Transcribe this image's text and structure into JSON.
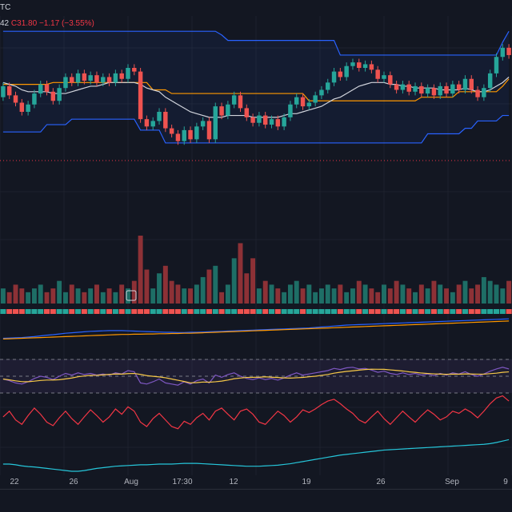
{
  "header": {
    "ticker_fragment": "TC",
    "legend_fragment": "42",
    "close_label": "C",
    "close_value": "31.80",
    "change": "−1.17 (−3.55%)"
  },
  "colors": {
    "background": "#131722",
    "up": "#26a69a",
    "down": "#ef5350",
    "channel": "#2962ff",
    "baseline": "#ff9800",
    "ma": "#d1d4dc",
    "rsi_line": "#7e57c2",
    "rsi_ma": "#f7c948",
    "osc_red": "#f23645",
    "osc_cyan": "#26c6da",
    "grid": "#1e222d"
  },
  "chart_data": {
    "type": "candlestick",
    "x_tick_labels": [
      "22",
      "26",
      "Aug",
      "17:30",
      "12",
      "19",
      "26",
      "Sep",
      "9"
    ],
    "price_candles": [
      {
        "o": 34.2,
        "c": 34.8
      },
      {
        "o": 34.8,
        "c": 34.3
      },
      {
        "o": 34.3,
        "c": 33.9
      },
      {
        "o": 33.9,
        "c": 33.4
      },
      {
        "o": 33.4,
        "c": 33.8
      },
      {
        "o": 33.8,
        "c": 34.4
      },
      {
        "o": 34.4,
        "c": 34.9
      },
      {
        "o": 34.9,
        "c": 34.5
      },
      {
        "o": 34.5,
        "c": 34.0
      },
      {
        "o": 34.0,
        "c": 34.7
      },
      {
        "o": 34.7,
        "c": 35.3
      },
      {
        "o": 35.3,
        "c": 35.0
      },
      {
        "o": 35.0,
        "c": 35.5
      },
      {
        "o": 35.5,
        "c": 35.1
      },
      {
        "o": 35.1,
        "c": 35.4
      },
      {
        "o": 35.4,
        "c": 35.0
      },
      {
        "o": 35.0,
        "c": 35.3
      },
      {
        "o": 35.3,
        "c": 35.0
      },
      {
        "o": 35.0,
        "c": 35.5
      },
      {
        "o": 35.5,
        "c": 35.2
      },
      {
        "o": 35.2,
        "c": 35.8
      },
      {
        "o": 35.8,
        "c": 35.6
      },
      {
        "o": 35.6,
        "c": 33.0
      },
      {
        "o": 33.0,
        "c": 32.6
      },
      {
        "o": 32.6,
        "c": 32.9
      },
      {
        "o": 32.9,
        "c": 33.4
      },
      {
        "o": 33.4,
        "c": 32.5
      },
      {
        "o": 32.5,
        "c": 32.2
      },
      {
        "o": 32.2,
        "c": 31.8
      },
      {
        "o": 31.8,
        "c": 32.4
      },
      {
        "o": 32.4,
        "c": 31.9
      },
      {
        "o": 31.9,
        "c": 32.6
      },
      {
        "o": 32.6,
        "c": 32.9
      },
      {
        "o": 32.9,
        "c": 31.9
      },
      {
        "o": 31.9,
        "c": 33.7
      },
      {
        "o": 33.7,
        "c": 33.2
      },
      {
        "o": 33.2,
        "c": 33.8
      },
      {
        "o": 33.8,
        "c": 34.3
      },
      {
        "o": 34.3,
        "c": 33.6
      },
      {
        "o": 33.6,
        "c": 33.1
      },
      {
        "o": 33.1,
        "c": 32.8
      },
      {
        "o": 32.8,
        "c": 33.2
      },
      {
        "o": 33.2,
        "c": 32.7
      },
      {
        "o": 32.7,
        "c": 33.0
      },
      {
        "o": 33.0,
        "c": 32.6
      },
      {
        "o": 32.6,
        "c": 33.1
      },
      {
        "o": 33.1,
        "c": 33.8
      },
      {
        "o": 33.8,
        "c": 34.2
      },
      {
        "o": 34.2,
        "c": 33.7
      },
      {
        "o": 33.7,
        "c": 33.9
      },
      {
        "o": 33.9,
        "c": 34.3
      },
      {
        "o": 34.3,
        "c": 34.6
      },
      {
        "o": 34.6,
        "c": 35.0
      },
      {
        "o": 35.0,
        "c": 35.6
      },
      {
        "o": 35.6,
        "c": 35.3
      },
      {
        "o": 35.3,
        "c": 35.9
      },
      {
        "o": 35.9,
        "c": 36.1
      },
      {
        "o": 36.1,
        "c": 35.8
      },
      {
        "o": 35.8,
        "c": 36.0
      },
      {
        "o": 36.0,
        "c": 35.7
      },
      {
        "o": 35.7,
        "c": 35.2
      },
      {
        "o": 35.2,
        "c": 35.4
      },
      {
        "o": 35.4,
        "c": 34.9
      },
      {
        "o": 34.9,
        "c": 34.6
      },
      {
        "o": 34.6,
        "c": 34.9
      },
      {
        "o": 34.9,
        "c": 34.5
      },
      {
        "o": 34.5,
        "c": 34.8
      },
      {
        "o": 34.8,
        "c": 34.4
      },
      {
        "o": 34.4,
        "c": 34.7
      },
      {
        "o": 34.7,
        "c": 34.3
      },
      {
        "o": 34.3,
        "c": 34.8
      },
      {
        "o": 34.8,
        "c": 34.4
      },
      {
        "o": 34.4,
        "c": 34.9
      },
      {
        "o": 34.9,
        "c": 34.6
      },
      {
        "o": 34.6,
        "c": 35.2
      },
      {
        "o": 35.2,
        "c": 34.6
      },
      {
        "o": 34.6,
        "c": 34.2
      },
      {
        "o": 34.2,
        "c": 34.7
      },
      {
        "o": 34.7,
        "c": 35.5
      },
      {
        "o": 35.5,
        "c": 36.4
      },
      {
        "o": 36.4,
        "c": 36.9
      },
      {
        "o": 36.9,
        "c": 36.5
      }
    ],
    "volume": [
      4,
      3,
      5,
      4,
      3,
      4,
      5,
      3,
      4,
      6,
      3,
      5,
      4,
      3,
      4,
      5,
      3,
      4,
      3,
      5,
      4,
      6,
      18,
      9,
      4,
      8,
      10,
      6,
      5,
      4,
      4,
      5,
      7,
      9,
      10,
      3,
      5,
      12,
      16,
      8,
      12,
      4,
      6,
      5,
      4,
      3,
      5,
      6,
      4,
      5,
      3,
      4,
      5,
      4,
      5,
      3,
      4,
      6,
      5,
      4,
      3,
      5,
      4,
      6,
      5,
      4,
      3,
      5,
      4,
      6,
      5,
      4,
      3,
      5,
      6,
      4,
      5,
      7,
      6,
      5,
      4,
      6
    ],
    "channel_upper": [
      37.8,
      37.8,
      37.8,
      37.8,
      37.8,
      37.8,
      37.8,
      37.8,
      37.8,
      37.8,
      37.8,
      37.8,
      37.8,
      37.8,
      37.8,
      37.8,
      37.8,
      37.8,
      37.8,
      37.8,
      37.8,
      37.8,
      37.8,
      37.8,
      37.8,
      37.8,
      37.8,
      37.8,
      37.8,
      37.8,
      37.8,
      37.8,
      37.8,
      37.8,
      37.8,
      37.6,
      37.3,
      37.3,
      37.3,
      37.3,
      37.3,
      37.3,
      37.3,
      37.3,
      37.3,
      37.3,
      37.3,
      37.3,
      37.3,
      37.3,
      37.3,
      37.3,
      37.3,
      37.3,
      36.5,
      36.5,
      36.5,
      36.5,
      36.5,
      36.5,
      36.5,
      36.5,
      36.5,
      36.5,
      36.5,
      36.5,
      36.5,
      36.5,
      36.5,
      36.5,
      36.5,
      36.5,
      36.5,
      36.5,
      36.5,
      36.5,
      36.5,
      36.5,
      36.5,
      36.5,
      37.2,
      37.8
    ],
    "channel_lower": [
      32.3,
      32.3,
      32.3,
      32.3,
      32.3,
      32.3,
      32.3,
      32.7,
      32.7,
      32.7,
      32.7,
      33.0,
      33.0,
      33.0,
      33.0,
      33.0,
      33.0,
      33.0,
      33.0,
      33.0,
      33.0,
      33.0,
      32.4,
      32.4,
      32.4,
      32.4,
      31.7,
      31.7,
      31.7,
      31.7,
      31.7,
      31.7,
      31.7,
      31.7,
      31.7,
      31.7,
      31.7,
      31.7,
      31.7,
      31.7,
      31.7,
      31.7,
      31.7,
      31.7,
      31.7,
      31.7,
      31.7,
      31.7,
      31.7,
      31.7,
      31.7,
      31.7,
      31.7,
      31.7,
      31.7,
      31.7,
      31.7,
      31.7,
      31.7,
      31.7,
      31.7,
      31.7,
      31.7,
      31.7,
      31.7,
      31.7,
      31.7,
      31.7,
      32.2,
      32.2,
      32.2,
      32.2,
      32.2,
      32.2,
      32.5,
      32.5,
      32.9,
      32.9,
      32.9,
      32.9,
      33.2,
      33.2
    ],
    "baseline": [
      34.9,
      34.9,
      34.9,
      34.9,
      34.9,
      34.9,
      34.9,
      34.9,
      35.0,
      35.0,
      35.0,
      35.0,
      35.0,
      35.0,
      35.0,
      35.0,
      35.0,
      35.0,
      35.0,
      35.0,
      35.0,
      35.0,
      35.0,
      35.0,
      34.6,
      34.6,
      34.6,
      34.4,
      34.4,
      34.4,
      34.4,
      34.4,
      34.4,
      34.4,
      34.4,
      34.4,
      34.4,
      34.4,
      34.4,
      34.4,
      34.4,
      34.4,
      34.4,
      34.4,
      34.4,
      34.4,
      34.4,
      34.4,
      34.4,
      34.0,
      34.0,
      34.0,
      34.0,
      34.0,
      34.0,
      34.0,
      34.0,
      34.0,
      34.0,
      34.0,
      34.0,
      34.0,
      34.0,
      34.0,
      34.0,
      34.0,
      34.0,
      34.2,
      34.2,
      34.2,
      34.2,
      34.2,
      34.2,
      34.5,
      34.5,
      34.5,
      34.5,
      34.5,
      34.5,
      34.5,
      34.8,
      35.2
    ],
    "moving_average": [
      35.0,
      34.9,
      34.8,
      34.6,
      34.5,
      34.5,
      34.5,
      34.5,
      34.4,
      34.4,
      34.4,
      34.5,
      34.6,
      34.7,
      34.8,
      34.8,
      34.9,
      35.0,
      35.0,
      35.0,
      35.0,
      35.0,
      34.9,
      34.7,
      34.6,
      34.5,
      34.2,
      34.0,
      33.8,
      33.6,
      33.4,
      33.3,
      33.2,
      33.1,
      33.1,
      33.1,
      33.2,
      33.2,
      33.2,
      33.2,
      33.1,
      33.1,
      33.1,
      33.1,
      33.1,
      33.2,
      33.3,
      33.3,
      33.4,
      33.5,
      33.6,
      33.7,
      33.9,
      34.1,
      34.2,
      34.4,
      34.6,
      34.8,
      34.9,
      35.0,
      35.0,
      35.0,
      34.9,
      34.9,
      34.8,
      34.8,
      34.7,
      34.7,
      34.7,
      34.7,
      34.6,
      34.6,
      34.6,
      34.6,
      34.7,
      34.6,
      34.5,
      34.5,
      34.6,
      34.8,
      35.0,
      35.3
    ],
    "rsi": [
      45,
      42,
      38,
      36,
      40,
      46,
      50,
      48,
      44,
      50,
      55,
      52,
      56,
      53,
      55,
      52,
      54,
      52,
      56,
      54,
      60,
      58,
      38,
      36,
      40,
      45,
      38,
      36,
      34,
      40,
      36,
      42,
      45,
      38,
      52,
      48,
      53,
      56,
      50,
      46,
      44,
      47,
      44,
      46,
      43,
      47,
      52,
      56,
      52,
      54,
      56,
      58,
      60,
      64,
      62,
      65,
      66,
      63,
      64,
      61,
      57,
      59,
      55,
      53,
      56,
      53,
      55,
      52,
      54,
      51,
      55,
      52,
      56,
      54,
      58,
      53,
      50,
      54,
      59,
      63,
      66,
      63
    ],
    "oscillator": [
      0.42,
      0.55,
      0.35,
      0.25,
      0.45,
      0.62,
      0.48,
      0.3,
      0.22,
      0.4,
      0.55,
      0.38,
      0.25,
      0.42,
      0.58,
      0.45,
      0.3,
      0.42,
      0.6,
      0.48,
      0.65,
      0.55,
      0.3,
      0.2,
      0.38,
      0.5,
      0.35,
      0.2,
      0.15,
      0.32,
      0.25,
      0.4,
      0.5,
      0.35,
      0.55,
      0.62,
      0.48,
      0.35,
      0.55,
      0.6,
      0.48,
      0.3,
      0.25,
      0.4,
      0.55,
      0.45,
      0.3,
      0.42,
      0.58,
      0.52,
      0.6,
      0.7,
      0.78,
      0.82,
      0.72,
      0.6,
      0.5,
      0.35,
      0.28,
      0.42,
      0.55,
      0.38,
      0.25,
      0.4,
      0.55,
      0.42,
      0.3,
      0.45,
      0.58,
      0.48,
      0.35,
      0.42,
      0.55,
      0.5,
      0.6,
      0.52,
      0.4,
      0.55,
      0.72,
      0.85,
      0.9,
      0.78
    ],
    "slow_line": [
      0.2,
      0.2,
      0.18,
      0.15,
      0.13,
      0.12,
      0.1,
      0.08,
      0.06,
      0.04,
      0.02,
      0.0,
      0.0,
      0.02,
      0.05,
      0.08,
      0.1,
      0.12,
      0.14,
      0.15,
      0.16,
      0.17,
      0.18,
      0.18,
      0.19,
      0.2,
      0.2,
      0.2,
      0.21,
      0.22,
      0.22,
      0.22,
      0.21,
      0.2,
      0.19,
      0.18,
      0.17,
      0.16,
      0.15,
      0.14,
      0.14,
      0.14,
      0.15,
      0.16,
      0.17,
      0.19,
      0.21,
      0.24,
      0.27,
      0.3,
      0.33,
      0.36,
      0.39,
      0.42,
      0.45,
      0.47,
      0.49,
      0.51,
      0.53,
      0.55,
      0.57,
      0.59,
      0.6,
      0.61,
      0.62,
      0.63,
      0.64,
      0.65,
      0.66,
      0.67,
      0.68,
      0.69,
      0.7,
      0.71,
      0.72,
      0.73,
      0.74,
      0.75,
      0.77,
      0.8,
      0.84,
      0.88
    ],
    "trend_blue": [
      0.15,
      0.16,
      0.17,
      0.18,
      0.2,
      0.22,
      0.25,
      0.28,
      0.3,
      0.33,
      0.36,
      0.38,
      0.4,
      0.42,
      0.44,
      0.45,
      0.46,
      0.47,
      0.47,
      0.47,
      0.46,
      0.45,
      0.44,
      0.43,
      0.42,
      0.41,
      0.4,
      0.4,
      0.39,
      0.39,
      0.4,
      0.4,
      0.41,
      0.42,
      0.43,
      0.44,
      0.45,
      0.46,
      0.47,
      0.48,
      0.49,
      0.5,
      0.51,
      0.52,
      0.53,
      0.54,
      0.55,
      0.56,
      0.57,
      0.58,
      0.6,
      0.62,
      0.64,
      0.66,
      0.68,
      0.7,
      0.71,
      0.72,
      0.73,
      0.74,
      0.75,
      0.76,
      0.77,
      0.78,
      0.79,
      0.8,
      0.81,
      0.82,
      0.83,
      0.84,
      0.85,
      0.86,
      0.87,
      0.88,
      0.89,
      0.9,
      0.91,
      0.92,
      0.93,
      0.94,
      0.95,
      0.96
    ],
    "trend_orange": [
      0.12,
      0.13,
      0.14,
      0.15,
      0.16,
      0.17,
      0.18,
      0.19,
      0.2,
      0.21,
      0.22,
      0.23,
      0.24,
      0.25,
      0.26,
      0.27,
      0.28,
      0.29,
      0.3,
      0.31,
      0.31,
      0.32,
      0.32,
      0.33,
      0.33,
      0.34,
      0.34,
      0.35,
      0.35,
      0.36,
      0.36,
      0.37,
      0.38,
      0.39,
      0.4,
      0.41,
      0.42,
      0.43,
      0.44,
      0.45,
      0.46,
      0.47,
      0.48,
      0.49,
      0.5,
      0.51,
      0.52,
      0.53,
      0.54,
      0.55,
      0.56,
      0.57,
      0.58,
      0.59,
      0.6,
      0.61,
      0.62,
      0.63,
      0.64,
      0.65,
      0.66,
      0.67,
      0.68,
      0.69,
      0.7,
      0.71,
      0.72,
      0.73,
      0.74,
      0.75,
      0.76,
      0.77,
      0.78,
      0.79,
      0.8,
      0.81,
      0.82,
      0.83,
      0.84,
      0.85,
      0.86,
      0.87
    ]
  }
}
